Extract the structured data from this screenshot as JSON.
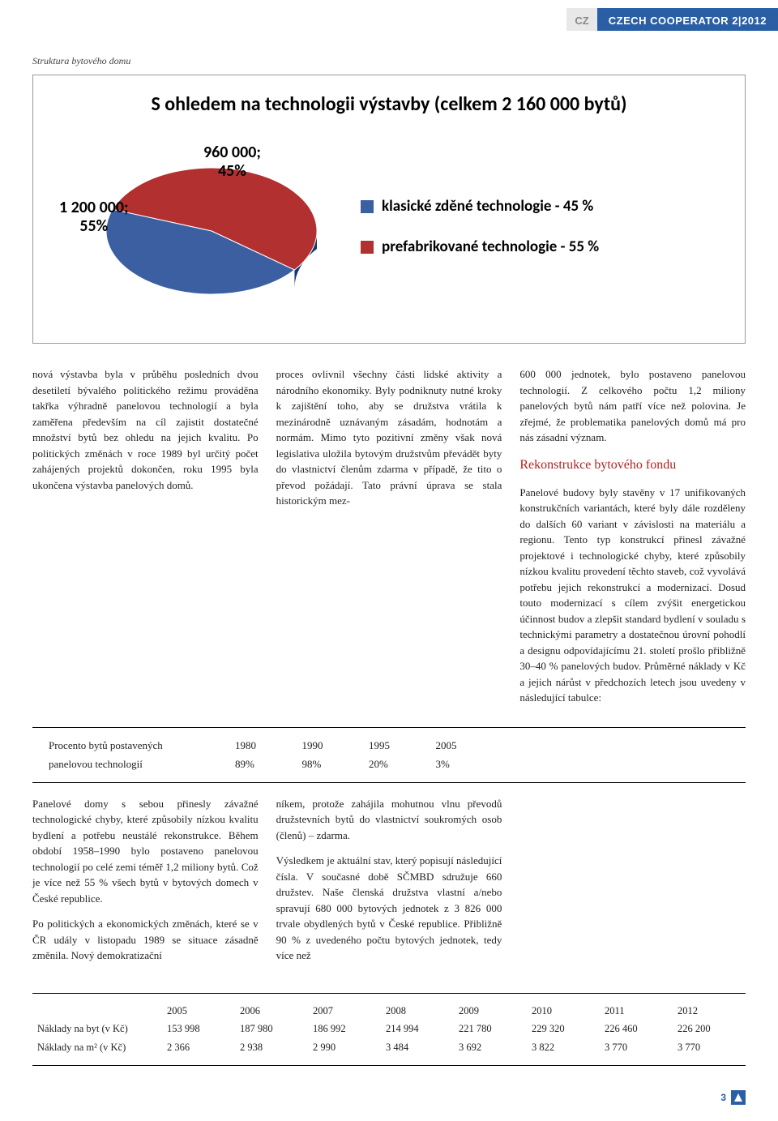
{
  "header": {
    "cz": "CZ",
    "title": "CZECH COOPERATOR 2|2012"
  },
  "section_label": "Struktura bytového domu",
  "chart": {
    "type": "pie",
    "title": "S ohledem na technologii výstavby (celkem 2 160 000 bytů)",
    "title_fontsize": 24,
    "slices": [
      {
        "label": "1 200 000;\n55%",
        "value": 55,
        "color": "#b23030"
      },
      {
        "label": "960 000;\n45%",
        "value": 45,
        "color": "#3b5fa0"
      }
    ],
    "legend": [
      {
        "text": "klasické zděné technologie - 45 %",
        "color": "#3b5fa0"
      },
      {
        "text": "prefabrikované technologie - 55 %",
        "color": "#b23030"
      }
    ],
    "background_color": "#ffffff",
    "border_color": "#999999"
  },
  "body": {
    "col1_p1": "nová výstavba byla v průběhu posledních dvou desetiletí bývalého politického režimu prováděna takřka výhradně panelovou technologií a byla zaměřena především na cíl zajistit dostatečné množství bytů bez ohledu na jejich kvalitu. Po politických změnách v roce 1989 byl určitý počet zahájených projektů dokončen, roku 1995 byla ukončena výstavba panelových domů.",
    "col1_p2": "Panelové domy s sebou přinesly závažné technologické chyby, které způsobily nízkou kvalitu bydlení a potřebu neustálé rekonstrukce. Během období 1958–1990 bylo postaveno panelovou technologií po celé zemi téměř 1,2 miliony bytů. Což je více než 55 % všech bytů v bytových domech v České republice.",
    "col1_p3": "Po politických a ekonomických změnách, které se v ČR udály v listopadu 1989 se situace zásadně změnila. Nový demokratizační",
    "col2_p1": "proces ovlivnil všechny části lidské aktivity a národního ekonomiky. Byly podniknuty nutné kroky k zajištění toho, aby se družstva vrátila k mezinárodně uznávaným zásadám, hodnotám a normám. Mimo tyto pozitivní změny však nová legislativa uložila bytovým družstvům převádět byty do vlastnictví členům zdarma v případě, že tito o převod požádají. Tato právní úprava se stala historickým mez-",
    "col2_p2": "níkem, protože zahájila mohutnou vlnu převodů družstevních bytů do vlastnictví soukromých osob (členů) – zdarma.",
    "col2_p3": "Výsledkem je aktuální stav, který popisují následující čísla. V současné době SČMBD sdružuje 660 družstev. Naše členská družstva vlastní a/nebo spravují 680 000 bytových jednotek z 3 826 000 trvale obydlených bytů v České republice. Přibližně 90 % z uvedeného počtu bytových jednotek, tedy více než",
    "col3_p1": "600 000 jednotek, bylo postaveno panelovou technologií. Z celkového počtu 1,2 miliony panelových bytů nám patří více než polovina. Je zřejmé, že problematika panelových domů má pro nás zásadní význam.",
    "col3_heading": "Rekonstrukce bytového fondu",
    "col3_p2": "Panelové budovy byly stavěny v 17 unifikovaných konstrukčních variantách, které byly dále rozděleny do dalších 60 variant v závislosti na materiálu a regionu. Tento typ konstrukcí přinesl závažné projektové i technologické chyby, které způsobily nízkou kvalitu provedení těchto staveb, což vyvolává potřebu jejich rekonstrukcí a modernizací. Dosud touto modernizací s cílem zvýšit energetickou účinnost budov a zlepšit standard bydlení v souladu s technickými parametry a dostatečnou úrovní pohodlí a designu odpovídajícímu 21. století prošlo přibližně 30–40 % panelových budov. Průměrné náklady v Kč a jejich nárůst v předchozích letech jsou uvedeny v následující tabulce:"
  },
  "pct_table": {
    "row1_label": "Procento bytů postavených",
    "row2_label": "panelovou technologií",
    "years": [
      "1980",
      "1990",
      "1995",
      "2005"
    ],
    "values": [
      "89%",
      "98%",
      "20%",
      "3%"
    ]
  },
  "cost_table": {
    "years": [
      "2005",
      "2006",
      "2007",
      "2008",
      "2009",
      "2010",
      "2011",
      "2012"
    ],
    "rows": [
      {
        "label": "Náklady na byt (v Kč)",
        "values": [
          "153 998",
          "187 980",
          "186 992",
          "214 994",
          "221 780",
          "229 320",
          "226 460",
          "226 200"
        ]
      },
      {
        "label": "Náklady na m² (v Kč)",
        "values": [
          "2 366",
          "2 938",
          "2 990",
          "3 484",
          "3 692",
          "3 822",
          "3 770",
          "3 770"
        ]
      }
    ]
  },
  "footer": {
    "page": "3"
  }
}
